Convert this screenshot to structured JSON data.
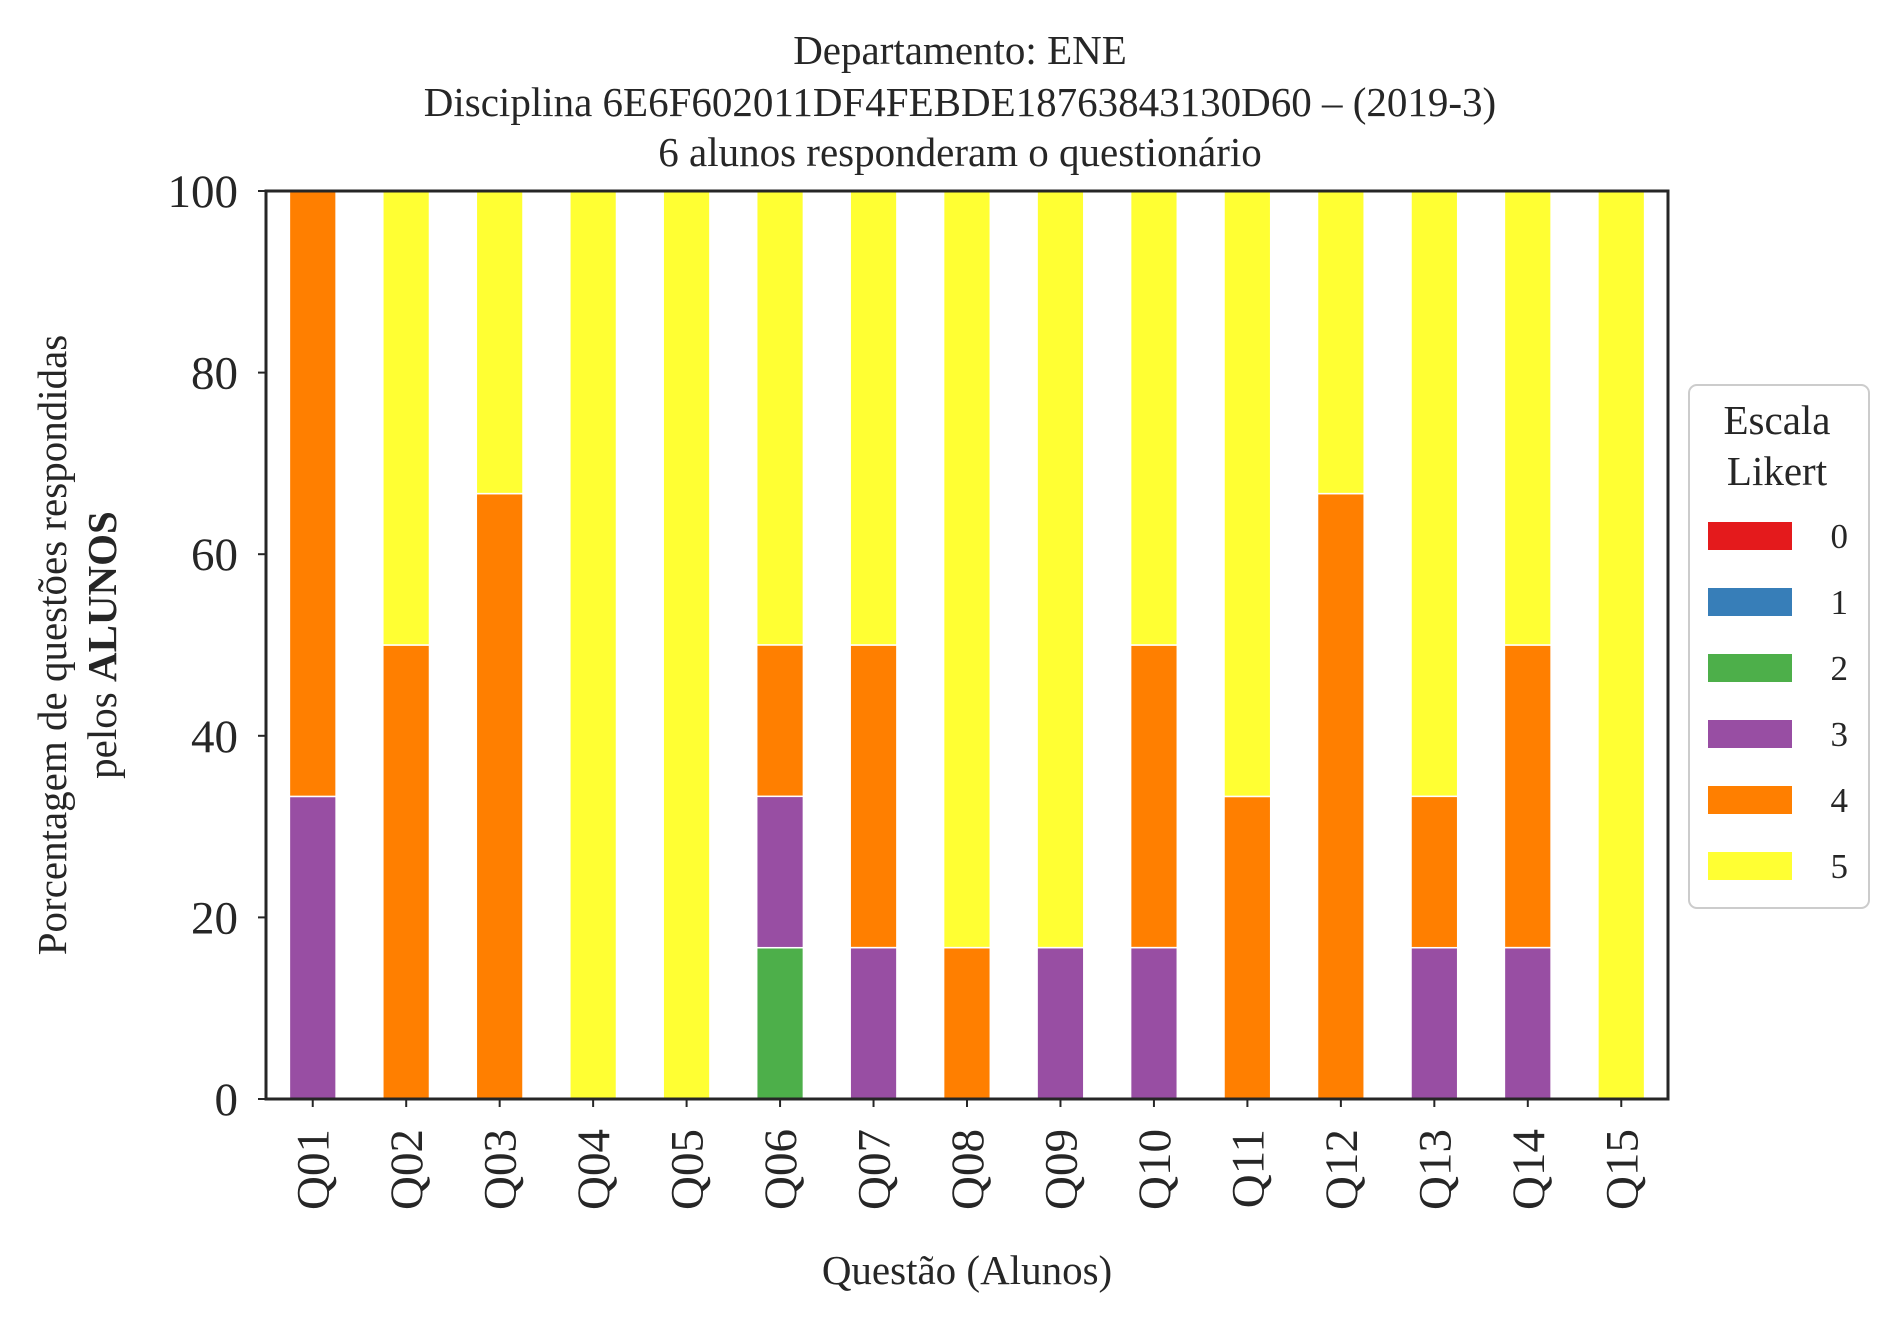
{
  "chart_data": {
    "type": "bar",
    "stacked": true,
    "title_lines": [
      "Departamento: ENE",
      "Disciplina 6E6F602011DF4FEBDE18763843130D60 – (2019-3)",
      "6 alunos responderam o questionário"
    ],
    "xlabel": "Questão (Alunos)",
    "ylabel_line1": "Porcentagem de questões respondidas",
    "ylabel_line2_prefix": "pelos ",
    "ylabel_line2_bold": "ALUNOS",
    "ylim": [
      0,
      100
    ],
    "yticks": [
      "0",
      "20",
      "40",
      "60",
      "80",
      "100"
    ],
    "categories": [
      "Q01",
      "Q02",
      "Q03",
      "Q04",
      "Q05",
      "Q06",
      "Q07",
      "Q08",
      "Q09",
      "Q10",
      "Q11",
      "Q12",
      "Q13",
      "Q14",
      "Q15"
    ],
    "legend": {
      "title_lines": [
        "Escala",
        "Likert"
      ],
      "placement": "right"
    },
    "series": [
      {
        "name": "0",
        "color": "#e41a1c",
        "values": [
          0,
          0,
          0,
          0,
          0,
          0,
          0,
          0,
          0,
          0,
          0,
          0,
          0,
          0,
          0
        ]
      },
      {
        "name": "1",
        "color": "#377eb8",
        "values": [
          0,
          0,
          0,
          0,
          0,
          0,
          0,
          0,
          0,
          0,
          0,
          0,
          0,
          0,
          0
        ]
      },
      {
        "name": "2",
        "color": "#4daf4a",
        "values": [
          0,
          0,
          0,
          0,
          0,
          16.67,
          0,
          0,
          0,
          0,
          0,
          0,
          0,
          0,
          0
        ]
      },
      {
        "name": "3",
        "color": "#984ea3",
        "values": [
          33.33,
          0,
          0,
          0,
          0,
          16.67,
          16.67,
          0,
          16.67,
          16.67,
          0,
          0,
          16.67,
          16.67,
          0
        ]
      },
      {
        "name": "4",
        "color": "#ff7f00",
        "values": [
          66.67,
          50,
          66.67,
          0,
          0,
          16.67,
          33.33,
          16.67,
          0,
          33.33,
          33.33,
          66.67,
          16.67,
          33.33,
          0
        ]
      },
      {
        "name": "5",
        "color": "#ffff33",
        "values": [
          0,
          50,
          33.33,
          100,
          100,
          50,
          50,
          83.33,
          83.33,
          50,
          66.67,
          33.33,
          66.67,
          50,
          100
        ]
      }
    ]
  }
}
